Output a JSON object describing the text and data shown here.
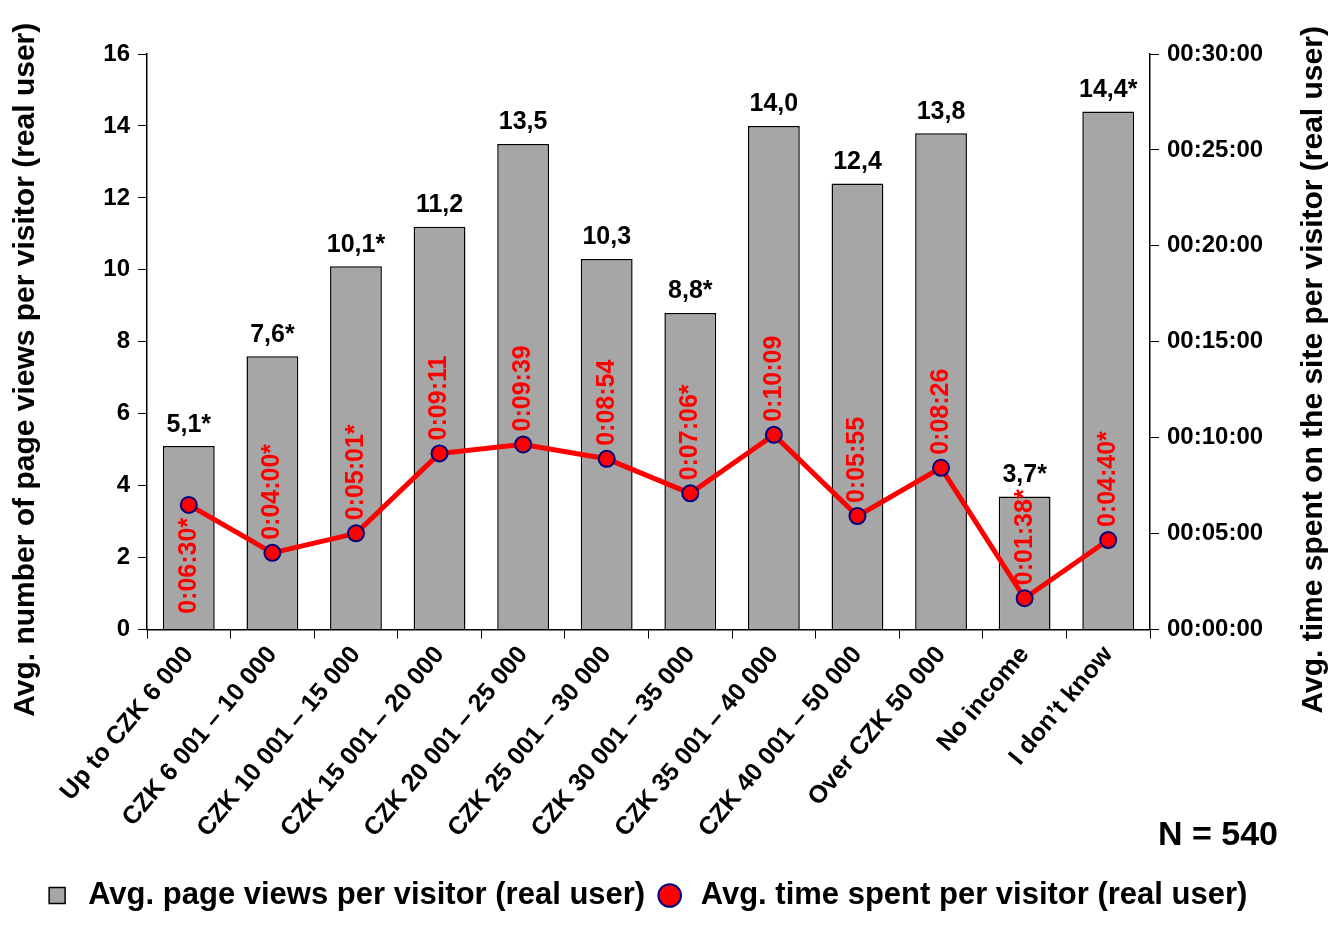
{
  "chart_data": {
    "type": "bar",
    "categories": [
      "Up to CZK 6 000",
      "CZK 6 001 – 10 000",
      "CZK 10 001 – 15 000",
      "CZK 15 001 – 20 000",
      "CZK 20 001 – 25 000",
      "CZK 25 001 – 30 000",
      "CZK 30 001 – 35 000",
      "CZK 35 001 – 40 000",
      "CZK 40 001 – 50 000",
      "Over CZK 50 000",
      "No income",
      "I don’t know"
    ],
    "ylabel": "Avg. number of page views per visitor (real user)",
    "y2label": "Avg. time spent on the site per visitor (real user)",
    "ylim": [
      0,
      16
    ],
    "yticks": [
      0,
      2,
      4,
      6,
      8,
      10,
      12,
      14,
      16
    ],
    "y2lim": [
      0,
      1800
    ],
    "y2ticks": [
      {
        "value": 0,
        "label": "00:00:00"
      },
      {
        "value": 300,
        "label": "00:05:00"
      },
      {
        "value": 600,
        "label": "00:10:00"
      },
      {
        "value": 900,
        "label": "00:15:00"
      },
      {
        "value": 1200,
        "label": "00:20:00"
      },
      {
        "value": 1500,
        "label": "00:25:00"
      },
      {
        "value": 1800,
        "label": "00:30:00"
      }
    ],
    "series": [
      {
        "name": "Avg. page views per visitor (real user)",
        "color": "#a6a6a6",
        "values": [
          5.1,
          7.6,
          10.1,
          11.2,
          13.5,
          10.3,
          8.8,
          14.0,
          12.4,
          13.8,
          3.7,
          14.4
        ],
        "value_labels": [
          "5,1*",
          "7,6*",
          "10,1*",
          "11,2",
          "13,5",
          "10,3",
          "8,8*",
          "14,0",
          "12,4",
          "13,8",
          "3,7*",
          "14,4*"
        ]
      },
      {
        "name": "Avg. time spent per visitor (real user)",
        "type": "line",
        "axis": "y2",
        "color": "#ff0000",
        "values": [
          390,
          240,
          301,
          551,
          579,
          534,
          426,
          609,
          355,
          506,
          98,
          280
        ],
        "value_labels": [
          "0:06:30*",
          "0:04:00*",
          "0:05:01*",
          "0:09:11",
          "0:09:39",
          "0:08:54",
          "0:07:06*",
          "0:10:09",
          "0:05:55",
          "0:08:26",
          "0:01:38*",
          "0:04:40*"
        ]
      }
    ],
    "marker": "circle",
    "line_style": "solid",
    "grid": false,
    "legend": "bottom",
    "annotations": [
      "N = 540"
    ]
  }
}
